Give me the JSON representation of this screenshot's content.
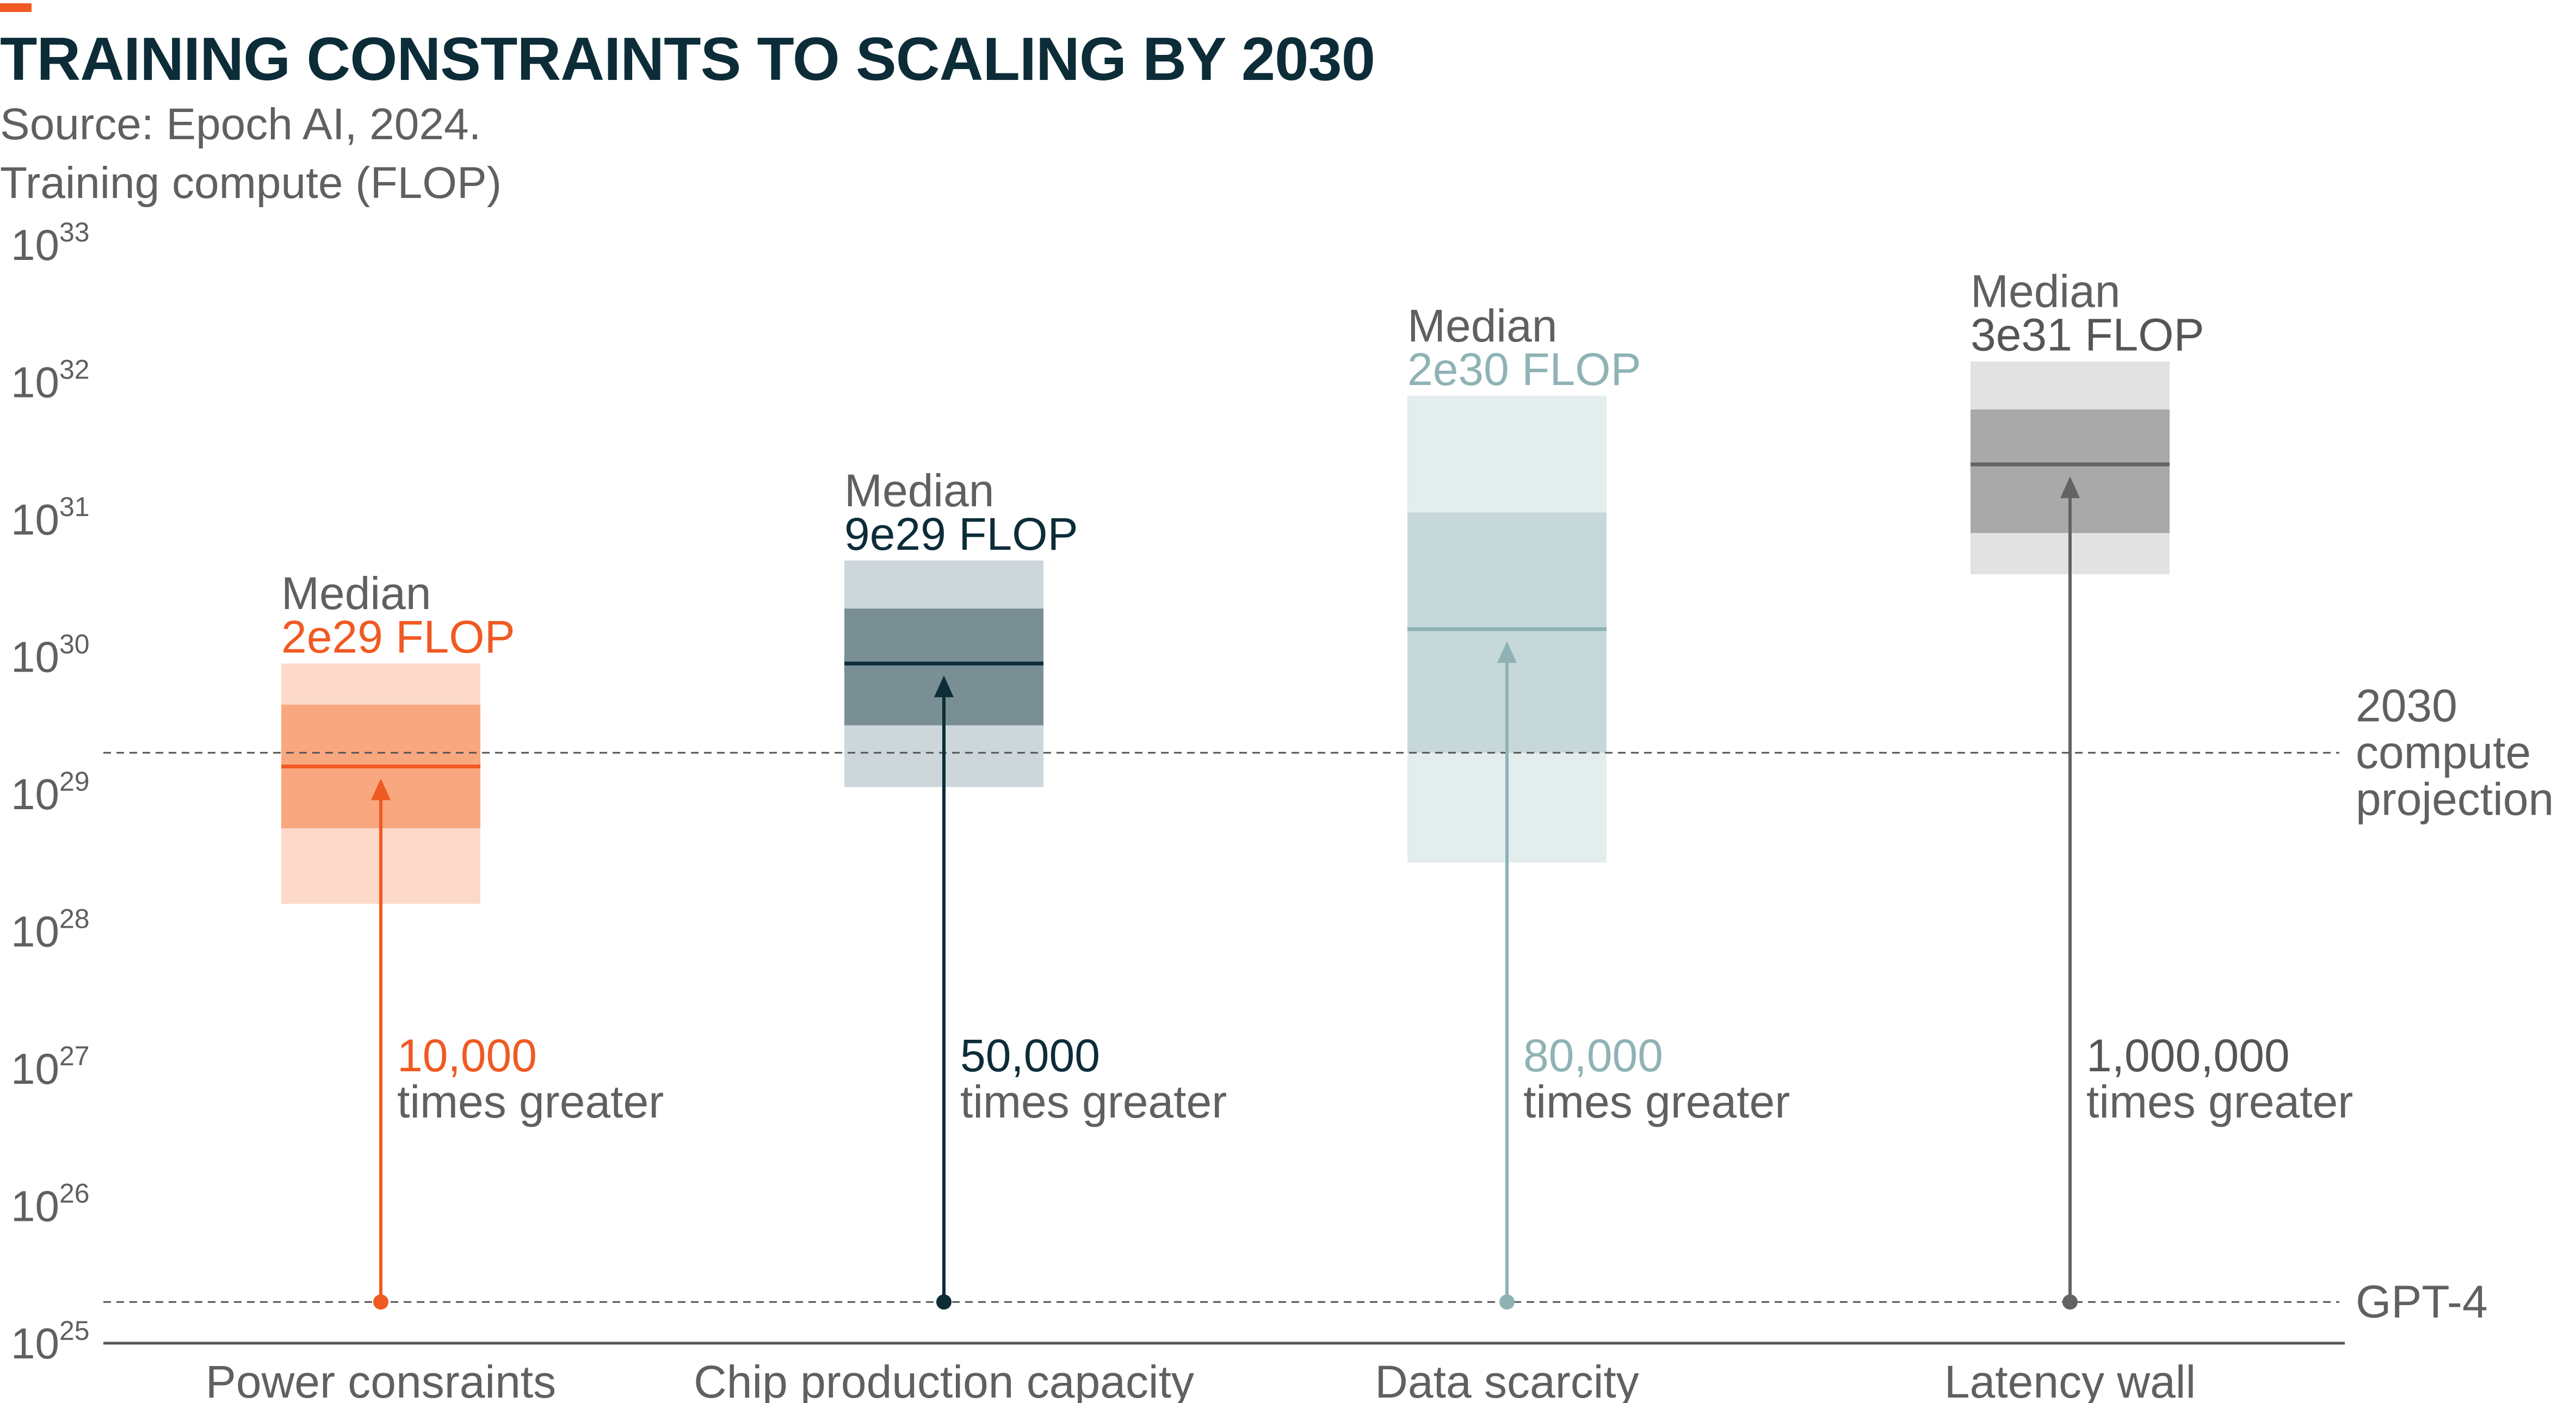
{
  "header": {
    "title": "TRAINING CONSTRAINTS TO SCALING BY 2030",
    "source": "Source: Epoch AI, 2024."
  },
  "chart_data": {
    "type": "box",
    "ylabel": "Training compute (FLOP)",
    "yscale": "log",
    "ylim_exp": [
      25,
      33
    ],
    "ytick_exponents": [
      25,
      26,
      27,
      28,
      29,
      30,
      31,
      32,
      33
    ],
    "reference_lines": [
      {
        "name": "2030 compute projection",
        "label_lines": [
          "2030",
          "compute",
          "projection"
        ],
        "exp": 29.3
      },
      {
        "name": "GPT-4",
        "label_lines": [
          "GPT-4"
        ],
        "exp": 25.3
      }
    ],
    "categories": [
      {
        "name": "Power consraints",
        "color": "#f05a22",
        "light": "#fdd9c9",
        "mid": "#f9a77f",
        "outer_exp": [
          28.2,
          29.95
        ],
        "inner_exp": [
          28.75,
          29.65
        ],
        "median_exp": 29.2,
        "median_title": "Median",
        "median_label": "2e29 FLOP",
        "multiplier": "10,000",
        "multiplier_text": "times greater",
        "median_label_color": "#f05a22",
        "multiplier_color": "#f05a22"
      },
      {
        "name": "Chip production capacity",
        "color": "#0c2c38",
        "light": "#cdd6da",
        "mid": "#798f94",
        "outer_exp": [
          29.05,
          30.7
        ],
        "inner_exp": [
          29.5,
          30.35
        ],
        "median_exp": 29.95,
        "median_title": "Median",
        "median_label": "9e29 FLOP",
        "multiplier": "50,000",
        "multiplier_text": "times greater",
        "median_label_color": "#0c2c38",
        "multiplier_color": "#0c2c38"
      },
      {
        "name": "Data scarcity",
        "color": "#8fb3b5",
        "light": "#e4edee",
        "mid": "#c6d8da",
        "outer_exp": [
          28.5,
          31.9
        ],
        "inner_exp": [
          29.3,
          31.05
        ],
        "median_exp": 30.2,
        "median_title": "Median",
        "median_label": "2e30 FLOP",
        "multiplier": "80,000",
        "multiplier_text": "times greater",
        "median_label_color": "#8fb3b5",
        "multiplier_color": "#8fb3b5"
      },
      {
        "name": "Latency wall",
        "color": "#636363",
        "light": "#e2e2e2",
        "mid": "#a9a9a9",
        "outer_exp": [
          30.6,
          32.15
        ],
        "inner_exp": [
          30.9,
          31.8
        ],
        "median_exp": 31.4,
        "median_title": "Median",
        "median_label": "3e31 FLOP",
        "multiplier": "1,000,000",
        "multiplier_text": "times greater",
        "median_label_color": "#555555",
        "multiplier_color": "#555555"
      }
    ],
    "text_color": "#606060",
    "grid": false,
    "legend": "none"
  }
}
